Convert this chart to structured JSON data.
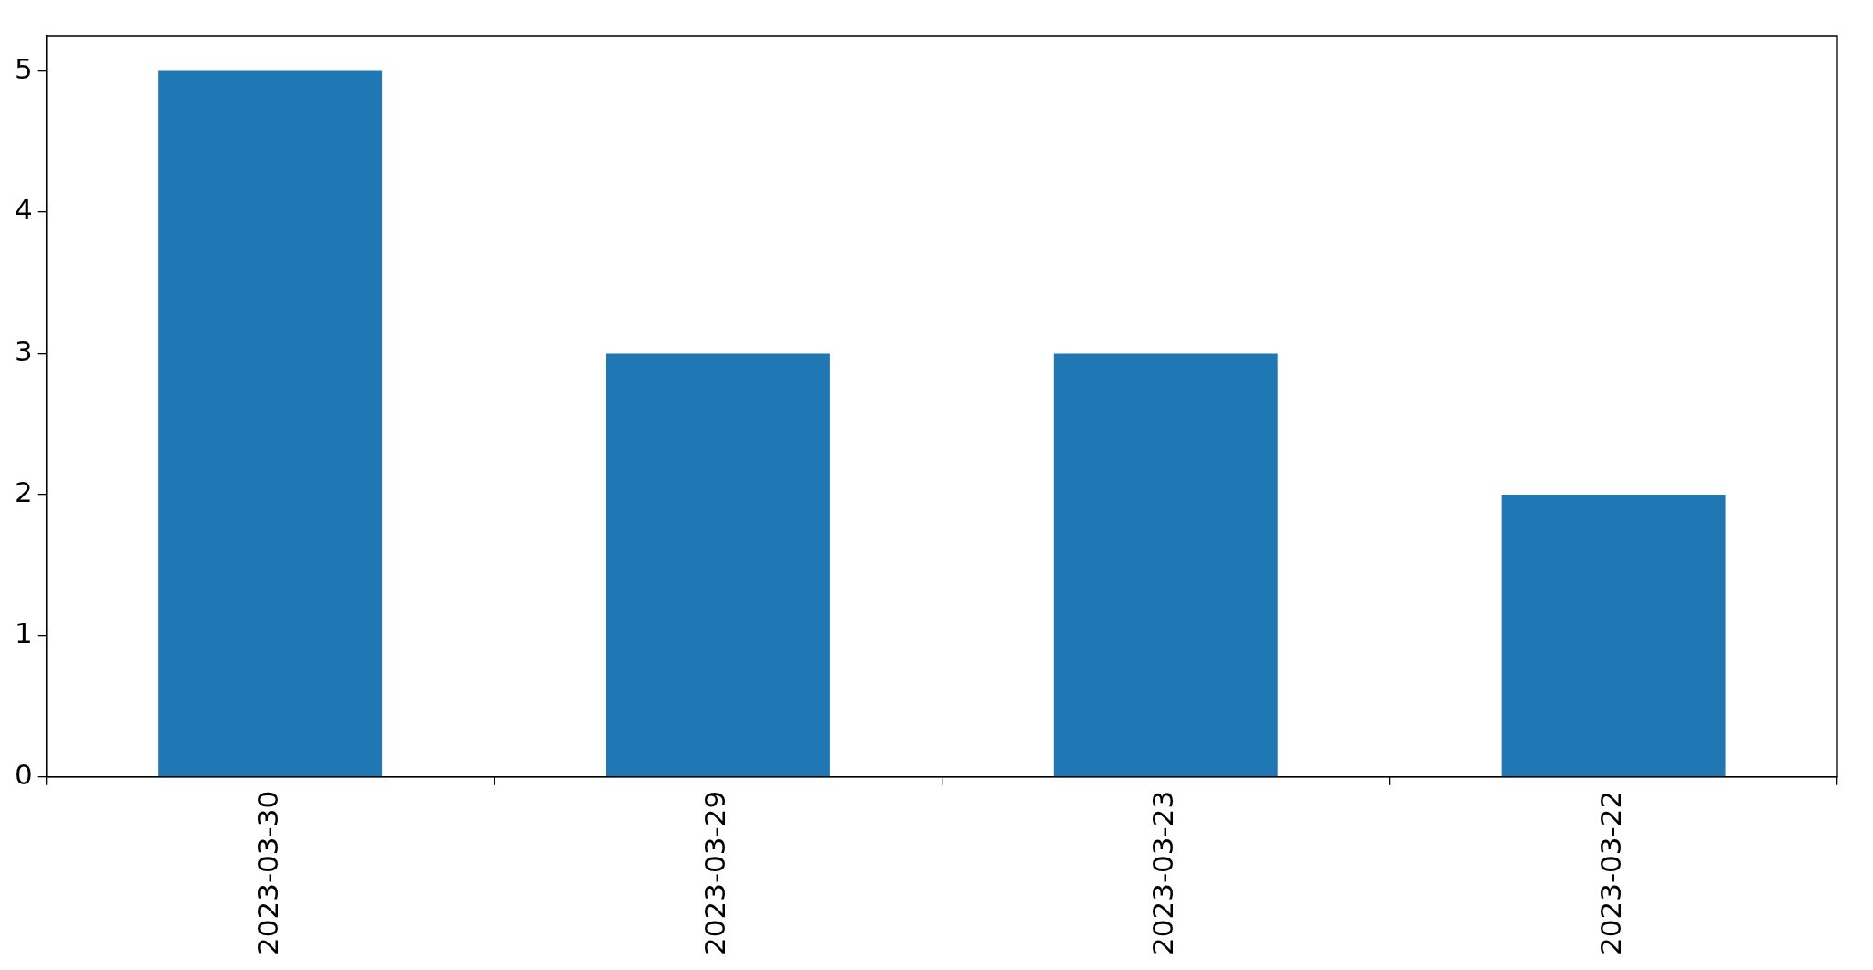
{
  "chart_data": {
    "type": "bar",
    "categories": [
      "2023-03-30",
      "2023-03-29",
      "2023-03-23",
      "2023-03-22"
    ],
    "values": [
      5,
      3,
      3,
      2
    ],
    "color": "#1f77b4",
    "ylim": [
      0,
      5.25
    ],
    "yticks": [
      0,
      1,
      2,
      3,
      4,
      5
    ],
    "grid": false,
    "legend": false
  }
}
